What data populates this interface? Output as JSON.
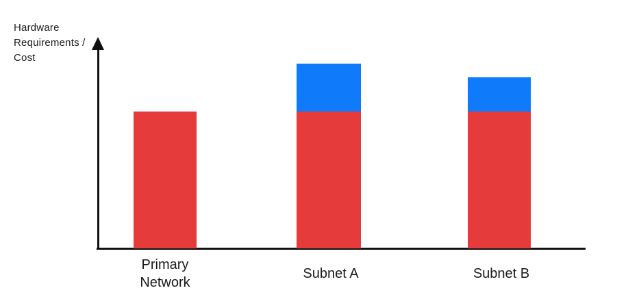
{
  "chart_data": {
    "type": "bar",
    "stacked": true,
    "title": "",
    "ylabel": "Hardware Requirements / Cost",
    "xlabel": "",
    "categories": [
      "Primary Network",
      "Subnet A",
      "Subnet B"
    ],
    "series": [
      {
        "name": "red-segment",
        "color": "#E53B3B",
        "values": [
          2.0,
          2.0,
          2.0
        ]
      },
      {
        "name": "blue-segment",
        "color": "#0F7BFB",
        "values": [
          0,
          0.7,
          0.5
        ]
      }
    ],
    "ylim": [
      0,
      3.05
    ],
    "grid": false,
    "legend": "none",
    "y_axis_has_arrow": true,
    "x_axis_has_arrow": false
  },
  "colors": {
    "axis": "#111111",
    "text": "#1a1a1a",
    "background": "#ffffff"
  }
}
